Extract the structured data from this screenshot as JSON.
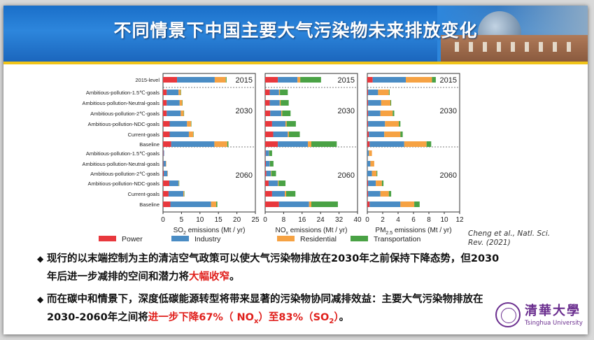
{
  "title": "不同情景下中国主要大气污染物未来排放变化",
  "chart_data": {
    "type": "bar",
    "stacked": true,
    "orientation": "horizontal",
    "categories": [
      "2015-level",
      "Ambitious-pollution-1.5℃-goals",
      "Ambitious-pollution-Neutral-goals",
      "Ambitious-pollution-2℃-goals",
      "Ambitious-pollution-NDC-goals",
      "Current-goals",
      "Baseline",
      "Ambitious-pollution-1.5℃-goals",
      "Ambitious-pollution-Neutral-goals",
      "Ambitious-pollution-2℃-goals",
      "Ambitious-pollution-NDC-goals",
      "Current-goals",
      "Baseline"
    ],
    "year_labels": [
      "2015",
      "2030",
      "2060"
    ],
    "legend": [
      {
        "name": "Power",
        "color": "#e8383d"
      },
      {
        "name": "Industry",
        "color": "#4a8cc4"
      },
      {
        "name": "Residential",
        "color": "#f6a243"
      },
      {
        "name": "Transportation",
        "color": "#4aa245"
      }
    ],
    "panels": [
      {
        "pollutant": "SO2",
        "xlabel_main": "SO",
        "xlabel_sub": "2",
        "xlabel_rest": " emissions (Mt / yr)",
        "xlim": [
          0,
          25
        ],
        "ticks": [
          "0",
          "5",
          "10",
          "15",
          "20",
          "25"
        ],
        "series": [
          {
            "name": "Power",
            "values": [
              3.8,
              1.0,
              1.0,
              1.0,
              1.8,
              1.8,
              2.2,
              0.1,
              0.1,
              0.2,
              1.7,
              1.5,
              2.0
            ]
          },
          {
            "name": "Industry",
            "values": [
              10.2,
              3.2,
              3.5,
              3.8,
              4.7,
              5.2,
              11.7,
              0.2,
              0.7,
              1.0,
              2.5,
              4.0,
              11.0
            ]
          },
          {
            "name": "Residential",
            "values": [
              3.0,
              0.6,
              0.7,
              0.8,
              1.1,
              1.2,
              3.5,
              0.0,
              0.1,
              0.1,
              0.1,
              0.2,
              1.4
            ]
          },
          {
            "name": "Transportation",
            "values": [
              0.2,
              0.1,
              0.1,
              0.1,
              0.1,
              0.1,
              0.3,
              0.0,
              0.0,
              0.0,
              0.1,
              0.1,
              0.3
            ]
          }
        ]
      },
      {
        "pollutant": "NOx",
        "xlabel_main": "NO",
        "xlabel_sub": "x",
        "xlabel_rest": " emissions (Mt / yr)",
        "xlim": [
          0,
          40
        ],
        "ticks": [
          "0",
          "8",
          "16",
          "24",
          "32",
          "40"
        ],
        "series": [
          {
            "name": "Power",
            "values": [
              5.5,
              2.0,
              2.0,
              2.2,
              3.0,
              3.5,
              5.5,
              0.2,
              0.3,
              0.5,
              1.5,
              3.0,
              6.0
            ]
          },
          {
            "name": "Industry",
            "values": [
              8.5,
              4.0,
              4.3,
              4.8,
              5.8,
              6.3,
              13.0,
              1.5,
              1.7,
              2.0,
              4.0,
              5.5,
              13.0
            ]
          },
          {
            "name": "Residential",
            "values": [
              1.2,
              0.4,
              0.4,
              0.4,
              0.5,
              0.5,
              1.5,
              0.1,
              0.1,
              0.2,
              0.3,
              0.6,
              1.0
            ]
          },
          {
            "name": "Transportation",
            "values": [
              9.0,
              3.4,
              3.5,
              3.6,
              4.0,
              4.7,
              11.0,
              1.2,
              1.5,
              2.0,
              3.0,
              4.0,
              11.5
            ]
          }
        ]
      },
      {
        "pollutant": "PM2.5",
        "xlabel_main": "PM",
        "xlabel_sub": "2.5",
        "xlabel_rest": " emissions (Mt / yr)",
        "xlim": [
          0,
          12
        ],
        "ticks": [
          "0",
          "2",
          "4",
          "6",
          "8",
          "10",
          "12"
        ],
        "series": [
          {
            "name": "Power",
            "values": [
              0.7,
              0.1,
              0.1,
              0.1,
              0.1,
              0.2,
              0.3,
              0.0,
              0.0,
              0.0,
              0.1,
              0.1,
              0.3
            ]
          },
          {
            "name": "Industry",
            "values": [
              4.3,
              1.3,
              1.7,
              1.6,
              2.2,
              2.0,
              4.5,
              0.2,
              0.4,
              0.6,
              1.0,
              1.6,
              4.0
            ]
          },
          {
            "name": "Residential",
            "values": [
              3.4,
              1.4,
              1.2,
              1.6,
              1.8,
              2.1,
              2.9,
              0.4,
              0.5,
              0.6,
              0.8,
              1.1,
              1.8
            ]
          },
          {
            "name": "Transportation",
            "values": [
              0.5,
              0.1,
              0.1,
              0.2,
              0.2,
              0.3,
              0.6,
              0.0,
              0.0,
              0.1,
              0.2,
              0.3,
              0.7
            ]
          }
        ]
      }
    ]
  },
  "citation": {
    "line1": "Cheng et al., Natl. Sci.",
    "line2": "Rev. (2021)"
  },
  "bullets": [
    {
      "marker": "◆",
      "line1": "现行的以末端控制为主的清洁空气政策可以使大气污染物排放在2030年之前保持下降态势，但2030",
      "line2_pre": "年后进一步减排的空间和潜力将",
      "line2_red": "大幅收窄",
      "line2_post": "。"
    },
    {
      "marker": "◆",
      "line1": "而在碳中和情景下，深度低碳能源转型将带来显著的污染物协同减排效益：主要大气污染物排放在",
      "line2_pre": "2030-2060年之间将",
      "line2_red_a": "进一步下降67%（ NO",
      "line2_red_a_sub": "x",
      "line2_red_b": "）至83%（SO",
      "line2_red_b_sub": "2",
      "line2_red_c": "）",
      "line2_post": "。"
    }
  ],
  "logo": {
    "cn": "清華大學",
    "en": "Tsinghua University"
  }
}
